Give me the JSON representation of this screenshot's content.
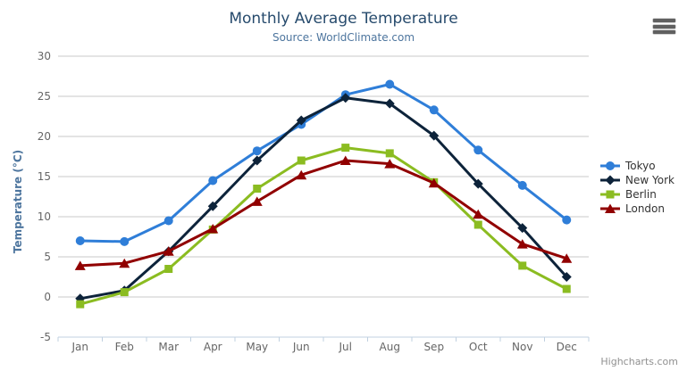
{
  "chart": {
    "credits": "Highcharts.com",
    "menu_icon": "hamburger-icon"
  },
  "chart_data": {
    "type": "line",
    "title": "Monthly Average Temperature",
    "subtitle": "Source: WorldClimate.com",
    "xlabel": "",
    "ylabel": "Temperature (°C)",
    "ylim": [
      -5,
      30
    ],
    "ytick_interval": 5,
    "grid": true,
    "legend_position": "right",
    "categories": [
      "Jan",
      "Feb",
      "Mar",
      "Apr",
      "May",
      "Jun",
      "Jul",
      "Aug",
      "Sep",
      "Oct",
      "Nov",
      "Dec"
    ],
    "series": [
      {
        "name": "Tokyo",
        "color": "#2f7ed8",
        "marker": "circle",
        "values": [
          7.0,
          6.9,
          9.5,
          14.5,
          18.2,
          21.5,
          25.2,
          26.5,
          23.3,
          18.3,
          13.9,
          9.6
        ]
      },
      {
        "name": "New York",
        "color": "#0d233a",
        "marker": "diamond",
        "values": [
          -0.2,
          0.8,
          5.7,
          11.3,
          17.0,
          22.0,
          24.8,
          24.1,
          20.1,
          14.1,
          8.6,
          2.5
        ]
      },
      {
        "name": "Berlin",
        "color": "#8bbc21",
        "marker": "square",
        "values": [
          -0.9,
          0.6,
          3.5,
          8.4,
          13.5,
          17.0,
          18.6,
          17.9,
          14.3,
          9.0,
          3.9,
          1.0
        ]
      },
      {
        "name": "London",
        "color": "#910000",
        "marker": "triangle",
        "values": [
          3.9,
          4.2,
          5.7,
          8.5,
          11.9,
          15.2,
          17.0,
          16.6,
          14.2,
          10.3,
          6.6,
          4.8
        ]
      }
    ],
    "colors": {
      "title": "#274b6d",
      "subtitle": "#4d759e",
      "axis_title": "#4d759e",
      "axis_labels": "#666666",
      "grid_line": "#c8c8c8",
      "axis_line": "#c0d0e0",
      "legend_text": "#333333",
      "credits": "#909090"
    }
  }
}
